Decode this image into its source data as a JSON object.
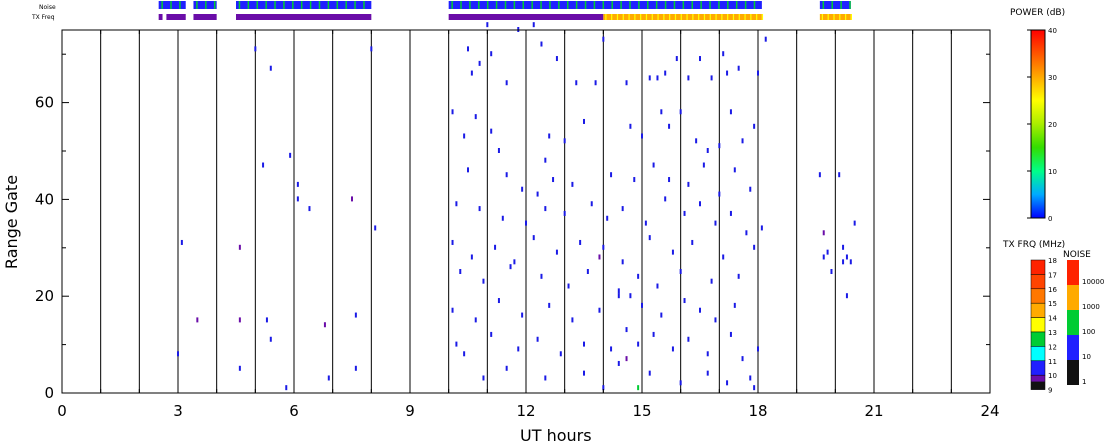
{
  "colors": {
    "axis": "#000000",
    "background": "#ffffff",
    "point_default": "#1a1ae6",
    "point_alt": "#6a0da8",
    "point_green": "#00cc33"
  },
  "status_bars": {
    "noise_label": "Noise",
    "txfreq_label": "TX Freq"
  },
  "power_colorbar": {
    "title": "POWER (dB)",
    "ticks": [
      "40",
      "30",
      "20",
      "10",
      "0"
    ],
    "stops": [
      "#0000ff",
      "#00aaff",
      "#00ff88",
      "#33dd00",
      "#aaee00",
      "#ffff00",
      "#ffaa00",
      "#ff5500",
      "#ff0000"
    ]
  },
  "txfreq_colorbar": {
    "title": "TX FRQ (MHz)",
    "ticks": [
      "18",
      "17",
      "16",
      "15",
      "14",
      "13",
      "12",
      "11",
      "10",
      "9"
    ],
    "colors": [
      "#ff2200",
      "#ff4400",
      "#ff7700",
      "#ffaa00",
      "#ffff00",
      "#00cc33",
      "#00ffff",
      "#2020ff",
      "#6a0da8",
      "#111111"
    ]
  },
  "noise_colorbar": {
    "title": "NOISE",
    "ticks": [
      "10000",
      "1000",
      "100",
      "10",
      "1"
    ],
    "colors": [
      "#ff2200",
      "#ffaa00",
      "#00cc33",
      "#2020ff",
      "#111111"
    ]
  },
  "chart_data": {
    "type": "scatter",
    "xlabel": "UT hours",
    "ylabel": "Range Gate",
    "xlim": [
      0,
      24
    ],
    "ylim": [
      0,
      75
    ],
    "x_ticks": [
      0,
      3,
      6,
      9,
      12,
      15,
      18,
      21,
      24
    ],
    "y_ticks": [
      0,
      20,
      40,
      60
    ],
    "x_minor_ticks": [
      1,
      2,
      4,
      5,
      7,
      8,
      10,
      11,
      13,
      14,
      16,
      17,
      19,
      20,
      22,
      23
    ],
    "hour_gridlines": [
      1,
      2,
      3,
      4,
      5,
      6,
      7,
      8,
      9,
      10,
      11,
      12,
      13,
      14,
      15,
      16,
      17,
      18,
      19,
      20,
      21,
      22,
      23
    ],
    "grid": true,
    "noise_segments": [
      [
        2.5,
        3.2
      ],
      [
        3.4,
        4.0
      ],
      [
        4.5,
        8.0
      ],
      [
        10.0,
        18.1
      ],
      [
        19.6,
        20.4
      ]
    ],
    "txfreq_segments": [
      {
        "start": 2.5,
        "end": 2.6,
        "freq": 10
      },
      {
        "start": 2.7,
        "end": 3.2,
        "freq": 10
      },
      {
        "start": 3.4,
        "end": 4.0,
        "freq": 10
      },
      {
        "start": 4.5,
        "end": 8.0,
        "freq": 10
      },
      {
        "start": 10.0,
        "end": 14.0,
        "freq": 10
      },
      {
        "start": 14.0,
        "end": 18.1,
        "freq": 15
      },
      {
        "start": 19.6,
        "end": 20.4,
        "freq": 15
      }
    ],
    "points": [
      {
        "x": 5.0,
        "y": 71
      },
      {
        "x": 5.4,
        "y": 67
      },
      {
        "x": 8.0,
        "y": 71
      },
      {
        "x": 5.9,
        "y": 49
      },
      {
        "x": 5.2,
        "y": 47
      },
      {
        "x": 6.1,
        "y": 43
      },
      {
        "x": 6.1,
        "y": 40
      },
      {
        "x": 6.4,
        "y": 38
      },
      {
        "x": 7.5,
        "y": 40,
        "c": "alt"
      },
      {
        "x": 8.1,
        "y": 34
      },
      {
        "x": 3.1,
        "y": 31
      },
      {
        "x": 4.6,
        "y": 30,
        "c": "alt"
      },
      {
        "x": 3.5,
        "y": 15,
        "c": "alt"
      },
      {
        "x": 4.6,
        "y": 15,
        "c": "alt"
      },
      {
        "x": 5.3,
        "y": 15
      },
      {
        "x": 5.4,
        "y": 11
      },
      {
        "x": 6.8,
        "y": 14,
        "c": "alt"
      },
      {
        "x": 7.6,
        "y": 16
      },
      {
        "x": 3.0,
        "y": 8
      },
      {
        "x": 4.6,
        "y": 5
      },
      {
        "x": 7.6,
        "y": 5
      },
      {
        "x": 6.9,
        "y": 3
      },
      {
        "x": 5.8,
        "y": 1
      },
      {
        "x": 10.5,
        "y": 71
      },
      {
        "x": 10.8,
        "y": 68
      },
      {
        "x": 11.0,
        "y": 76
      },
      {
        "x": 10.6,
        "y": 66
      },
      {
        "x": 11.1,
        "y": 70
      },
      {
        "x": 11.5,
        "y": 64
      },
      {
        "x": 11.8,
        "y": 75
      },
      {
        "x": 12.2,
        "y": 76
      },
      {
        "x": 12.4,
        "y": 72
      },
      {
        "x": 12.8,
        "y": 69
      },
      {
        "x": 13.3,
        "y": 64
      },
      {
        "x": 13.8,
        "y": 64
      },
      {
        "x": 14.0,
        "y": 73
      },
      {
        "x": 14.6,
        "y": 64
      },
      {
        "x": 15.2,
        "y": 65
      },
      {
        "x": 15.4,
        "y": 65
      },
      {
        "x": 15.6,
        "y": 66
      },
      {
        "x": 15.9,
        "y": 69
      },
      {
        "x": 16.2,
        "y": 65
      },
      {
        "x": 16.5,
        "y": 69
      },
      {
        "x": 16.8,
        "y": 65
      },
      {
        "x": 17.1,
        "y": 70
      },
      {
        "x": 17.2,
        "y": 66
      },
      {
        "x": 17.5,
        "y": 67
      },
      {
        "x": 18.0,
        "y": 66
      },
      {
        "x": 18.2,
        "y": 73
      },
      {
        "x": 10.1,
        "y": 58
      },
      {
        "x": 10.4,
        "y": 53
      },
      {
        "x": 10.7,
        "y": 57
      },
      {
        "x": 11.1,
        "y": 54
      },
      {
        "x": 11.3,
        "y": 50
      },
      {
        "x": 12.6,
        "y": 53
      },
      {
        "x": 12.5,
        "y": 48
      },
      {
        "x": 13.0,
        "y": 52
      },
      {
        "x": 13.5,
        "y": 56
      },
      {
        "x": 14.7,
        "y": 55
      },
      {
        "x": 15.0,
        "y": 53
      },
      {
        "x": 15.5,
        "y": 58
      },
      {
        "x": 15.7,
        "y": 55
      },
      {
        "x": 16.0,
        "y": 58
      },
      {
        "x": 16.4,
        "y": 52
      },
      {
        "x": 16.7,
        "y": 50
      },
      {
        "x": 17.0,
        "y": 51
      },
      {
        "x": 17.3,
        "y": 58
      },
      {
        "x": 17.6,
        "y": 52
      },
      {
        "x": 17.9,
        "y": 55
      },
      {
        "x": 10.5,
        "y": 46
      },
      {
        "x": 11.5,
        "y": 45
      },
      {
        "x": 11.9,
        "y": 42
      },
      {
        "x": 12.3,
        "y": 41
      },
      {
        "x": 12.7,
        "y": 44
      },
      {
        "x": 13.2,
        "y": 43
      },
      {
        "x": 14.2,
        "y": 45
      },
      {
        "x": 14.8,
        "y": 44
      },
      {
        "x": 15.3,
        "y": 47
      },
      {
        "x": 15.7,
        "y": 44
      },
      {
        "x": 16.2,
        "y": 43
      },
      {
        "x": 16.6,
        "y": 47
      },
      {
        "x": 17.0,
        "y": 41
      },
      {
        "x": 17.4,
        "y": 46
      },
      {
        "x": 17.8,
        "y": 42
      },
      {
        "x": 10.2,
        "y": 39
      },
      {
        "x": 10.8,
        "y": 38
      },
      {
        "x": 11.4,
        "y": 36
      },
      {
        "x": 12.0,
        "y": 35
      },
      {
        "x": 12.5,
        "y": 38
      },
      {
        "x": 13.0,
        "y": 37
      },
      {
        "x": 13.7,
        "y": 39
      },
      {
        "x": 14.1,
        "y": 36
      },
      {
        "x": 14.5,
        "y": 38
      },
      {
        "x": 15.1,
        "y": 35
      },
      {
        "x": 15.6,
        "y": 40
      },
      {
        "x": 16.1,
        "y": 37
      },
      {
        "x": 16.5,
        "y": 39
      },
      {
        "x": 16.9,
        "y": 35
      },
      {
        "x": 17.3,
        "y": 37
      },
      {
        "x": 17.7,
        "y": 33
      },
      {
        "x": 18.1,
        "y": 34
      },
      {
        "x": 10.1,
        "y": 31
      },
      {
        "x": 10.6,
        "y": 28
      },
      {
        "x": 11.2,
        "y": 30
      },
      {
        "x": 11.7,
        "y": 27
      },
      {
        "x": 12.2,
        "y": 32
      },
      {
        "x": 12.8,
        "y": 29
      },
      {
        "x": 13.4,
        "y": 31
      },
      {
        "x": 14.0,
        "y": 30
      },
      {
        "x": 14.5,
        "y": 27
      },
      {
        "x": 15.2,
        "y": 32
      },
      {
        "x": 15.8,
        "y": 29
      },
      {
        "x": 16.3,
        "y": 31
      },
      {
        "x": 17.1,
        "y": 28
      },
      {
        "x": 17.9,
        "y": 30
      },
      {
        "x": 10.3,
        "y": 25
      },
      {
        "x": 10.9,
        "y": 23
      },
      {
        "x": 11.6,
        "y": 26
      },
      {
        "x": 12.4,
        "y": 24
      },
      {
        "x": 13.1,
        "y": 22
      },
      {
        "x": 13.6,
        "y": 25
      },
      {
        "x": 14.4,
        "y": 21
      },
      {
        "x": 14.9,
        "y": 24
      },
      {
        "x": 15.4,
        "y": 22
      },
      {
        "x": 16.0,
        "y": 25
      },
      {
        "x": 16.8,
        "y": 23
      },
      {
        "x": 17.5,
        "y": 24
      },
      {
        "x": 10.1,
        "y": 17
      },
      {
        "x": 10.7,
        "y": 15
      },
      {
        "x": 11.3,
        "y": 19
      },
      {
        "x": 11.9,
        "y": 16
      },
      {
        "x": 12.6,
        "y": 18
      },
      {
        "x": 13.2,
        "y": 15
      },
      {
        "x": 13.9,
        "y": 17
      },
      {
        "x": 14.4,
        "y": 20
      },
      {
        "x": 14.7,
        "y": 20
      },
      {
        "x": 15.0,
        "y": 18
      },
      {
        "x": 15.5,
        "y": 16
      },
      {
        "x": 16.1,
        "y": 19
      },
      {
        "x": 16.5,
        "y": 17
      },
      {
        "x": 16.9,
        "y": 15
      },
      {
        "x": 17.4,
        "y": 18
      },
      {
        "x": 10.2,
        "y": 10
      },
      {
        "x": 10.4,
        "y": 8
      },
      {
        "x": 11.1,
        "y": 12
      },
      {
        "x": 11.8,
        "y": 9
      },
      {
        "x": 12.3,
        "y": 11
      },
      {
        "x": 12.9,
        "y": 8
      },
      {
        "x": 13.5,
        "y": 10
      },
      {
        "x": 14.2,
        "y": 9
      },
      {
        "x": 14.6,
        "y": 13
      },
      {
        "x": 14.9,
        "y": 10
      },
      {
        "x": 15.3,
        "y": 12
      },
      {
        "x": 15.8,
        "y": 9
      },
      {
        "x": 16.2,
        "y": 11
      },
      {
        "x": 16.7,
        "y": 8
      },
      {
        "x": 17.3,
        "y": 12
      },
      {
        "x": 17.6,
        "y": 7
      },
      {
        "x": 18.0,
        "y": 9
      },
      {
        "x": 10.9,
        "y": 3
      },
      {
        "x": 11.5,
        "y": 5
      },
      {
        "x": 12.5,
        "y": 3
      },
      {
        "x": 13.5,
        "y": 4
      },
      {
        "x": 14.0,
        "y": 1
      },
      {
        "x": 14.4,
        "y": 6
      },
      {
        "x": 15.2,
        "y": 4
      },
      {
        "x": 16.0,
        "y": 2
      },
      {
        "x": 16.7,
        "y": 4
      },
      {
        "x": 17.2,
        "y": 2
      },
      {
        "x": 17.9,
        "y": 1
      },
      {
        "x": 17.8,
        "y": 3
      },
      {
        "x": 14.9,
        "y": 1,
        "c": "green"
      },
      {
        "x": 14.6,
        "y": 7,
        "c": "alt"
      },
      {
        "x": 13.9,
        "y": 28,
        "c": "alt"
      },
      {
        "x": 19.6,
        "y": 45
      },
      {
        "x": 20.1,
        "y": 45
      },
      {
        "x": 19.7,
        "y": 33,
        "c": "alt"
      },
      {
        "x": 19.8,
        "y": 29
      },
      {
        "x": 19.7,
        "y": 28
      },
      {
        "x": 20.2,
        "y": 30
      },
      {
        "x": 20.3,
        "y": 28
      },
      {
        "x": 20.4,
        "y": 27
      },
      {
        "x": 20.2,
        "y": 27
      },
      {
        "x": 20.5,
        "y": 35
      },
      {
        "x": 20.3,
        "y": 20
      },
      {
        "x": 19.9,
        "y": 25
      }
    ]
  }
}
